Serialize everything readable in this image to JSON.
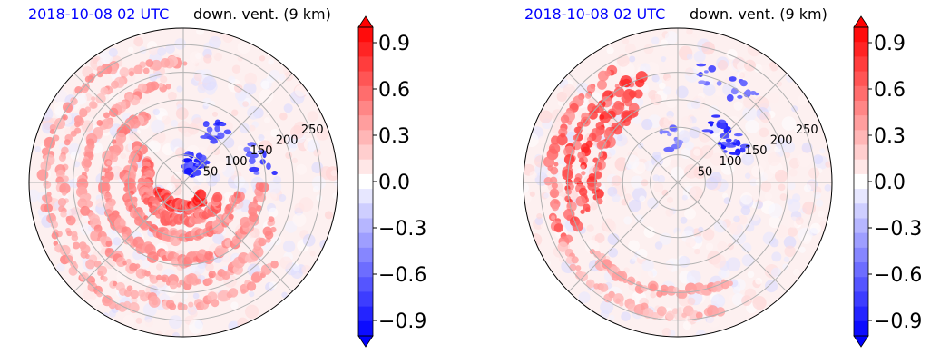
{
  "figure": {
    "panels": [
      {
        "date_label": "2018-10-08 02 UTC",
        "title": "down. vent. (9 km)"
      },
      {
        "date_label": "2018-10-08 02 UTC",
        "title": "down. vent. (9 km)"
      }
    ]
  },
  "chart_data": [
    {
      "type": "heatmap",
      "projection": "polar",
      "date_label": "2018-10-08 02 UTC",
      "title": "down. vent. (9 km)",
      "radial_ticks": [
        50,
        100,
        150,
        200,
        250
      ],
      "radial_max": 280,
      "angular_grid_deg": 45,
      "grid": true,
      "colormap": "bwr",
      "colorbar": {
        "ticks": [
          0.9,
          0.6,
          0.3,
          0.0,
          -0.3,
          -0.6,
          -0.9
        ],
        "tick_labels": [
          "0.9",
          "0.6",
          "0.3",
          "0.0",
          "−0.3",
          "−0.6",
          "−0.9"
        ],
        "vmin": -1.0,
        "vmax": 1.0,
        "levels": 21,
        "extend": "both"
      },
      "features": {
        "red_arcs": [
          {
            "r": 45,
            "a0": 200,
            "a1": 330,
            "v": 0.95
          },
          {
            "r": 70,
            "a0": 150,
            "a1": 340,
            "v": 0.7
          },
          {
            "r": 100,
            "a0": 140,
            "a1": 350,
            "v": 0.6
          },
          {
            "r": 140,
            "a0": 120,
            "a1": 360,
            "v": 0.55
          },
          {
            "r": 180,
            "a0": 100,
            "a1": 340,
            "v": 0.5
          },
          {
            "r": 220,
            "a0": 90,
            "a1": 320,
            "v": 0.45
          },
          {
            "r": 250,
            "a0": 120,
            "a1": 250,
            "v": 0.5
          }
        ],
        "blue_clusters": [
          {
            "r": 40,
            "a": 60,
            "spread": 55,
            "n": 40,
            "v": -0.95
          },
          {
            "r": 110,
            "a": 60,
            "spread": 25,
            "n": 18,
            "v": -0.9
          },
          {
            "r": 150,
            "a": 20,
            "spread": 30,
            "n": 14,
            "v": -0.8
          }
        ]
      }
    },
    {
      "type": "heatmap",
      "projection": "polar",
      "date_label": "2018-10-08 02 UTC",
      "title": "down. vent. (9 km)",
      "radial_ticks": [
        50,
        100,
        150,
        200,
        250
      ],
      "radial_max": 280,
      "angular_grid_deg": 45,
      "grid": true,
      "colormap": "bwr",
      "colorbar": {
        "ticks": [
          0.9,
          0.6,
          0.3,
          0.0,
          -0.3,
          -0.6,
          -0.9
        ],
        "tick_labels": [
          "0.9",
          "0.6",
          "0.3",
          "0.0",
          "−0.3",
          "−0.6",
          "−0.9"
        ],
        "vmin": -1.0,
        "vmax": 1.0,
        "levels": 21,
        "extend": "both"
      },
      "features": {
        "red_arcs": [
          {
            "r": 150,
            "a0": 120,
            "a1": 195,
            "v": 0.85
          },
          {
            "r": 175,
            "a0": 115,
            "a1": 200,
            "v": 0.9
          },
          {
            "r": 200,
            "a0": 110,
            "a1": 205,
            "v": 0.85
          },
          {
            "r": 230,
            "a0": 120,
            "a1": 210,
            "v": 0.7
          },
          {
            "r": 200,
            "a0": 220,
            "a1": 300,
            "v": 0.45
          },
          {
            "r": 240,
            "a0": 210,
            "a1": 290,
            "v": 0.4
          }
        ],
        "blue_clusters": [
          {
            "r": 120,
            "a": 45,
            "spread": 40,
            "n": 30,
            "v": -0.95
          },
          {
            "r": 200,
            "a": 65,
            "spread": 40,
            "n": 18,
            "v": -0.7
          },
          {
            "r": 80,
            "a": 100,
            "spread": 30,
            "n": 10,
            "v": -0.6
          }
        ]
      }
    }
  ]
}
